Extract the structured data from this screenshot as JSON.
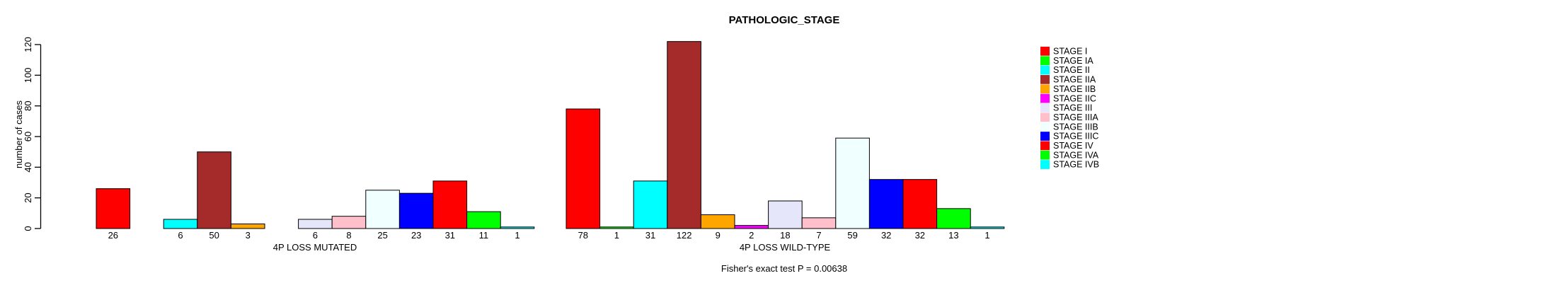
{
  "page": {
    "background": "#FFFFFF",
    "axis_color": "#000000",
    "bar_border_color": "#000000"
  },
  "chart_data": {
    "type": "bar",
    "title": "PATHOLOGIC_STAGE",
    "ylabel": "number of cases",
    "yticks": [
      0,
      20,
      40,
      60,
      80,
      100,
      120
    ],
    "ylim": [
      0,
      120
    ],
    "grid": false,
    "legend_position": "right",
    "stages": [
      {
        "name": "STAGE I",
        "color": "#FF0000"
      },
      {
        "name": "STAGE IA",
        "color": "#00FF00"
      },
      {
        "name": "STAGE II",
        "color": "#00FFFF"
      },
      {
        "name": "STAGE IIA",
        "color": "#A52A2A"
      },
      {
        "name": "STAGE IIB",
        "color": "#FFA500"
      },
      {
        "name": "STAGE IIC",
        "color": "#FF00FF"
      },
      {
        "name": "STAGE III",
        "color": "#E6E6FA"
      },
      {
        "name": "STAGE IIIA",
        "color": "#FFC0CB"
      },
      {
        "name": "STAGE IIIB",
        "color": "#F0FFFF"
      },
      {
        "name": "STAGE IIIC",
        "color": "#0000FF"
      },
      {
        "name": "STAGE IV",
        "color": "#FF0000"
      },
      {
        "name": "STAGE IVA",
        "color": "#00FF00"
      },
      {
        "name": "STAGE IVB",
        "color": "#00FFFF"
      }
    ],
    "panels": [
      {
        "label": "4P LOSS MUTATED",
        "values": [
          26,
          null,
          6,
          50,
          3,
          null,
          6,
          8,
          25,
          23,
          31,
          11,
          1
        ]
      },
      {
        "label": "4P LOSS WILD-TYPE",
        "values": [
          78,
          1,
          31,
          122,
          9,
          2,
          18,
          7,
          59,
          32,
          32,
          13,
          1
        ]
      }
    ],
    "footer": "Fisher's exact test P = 0.00638"
  }
}
